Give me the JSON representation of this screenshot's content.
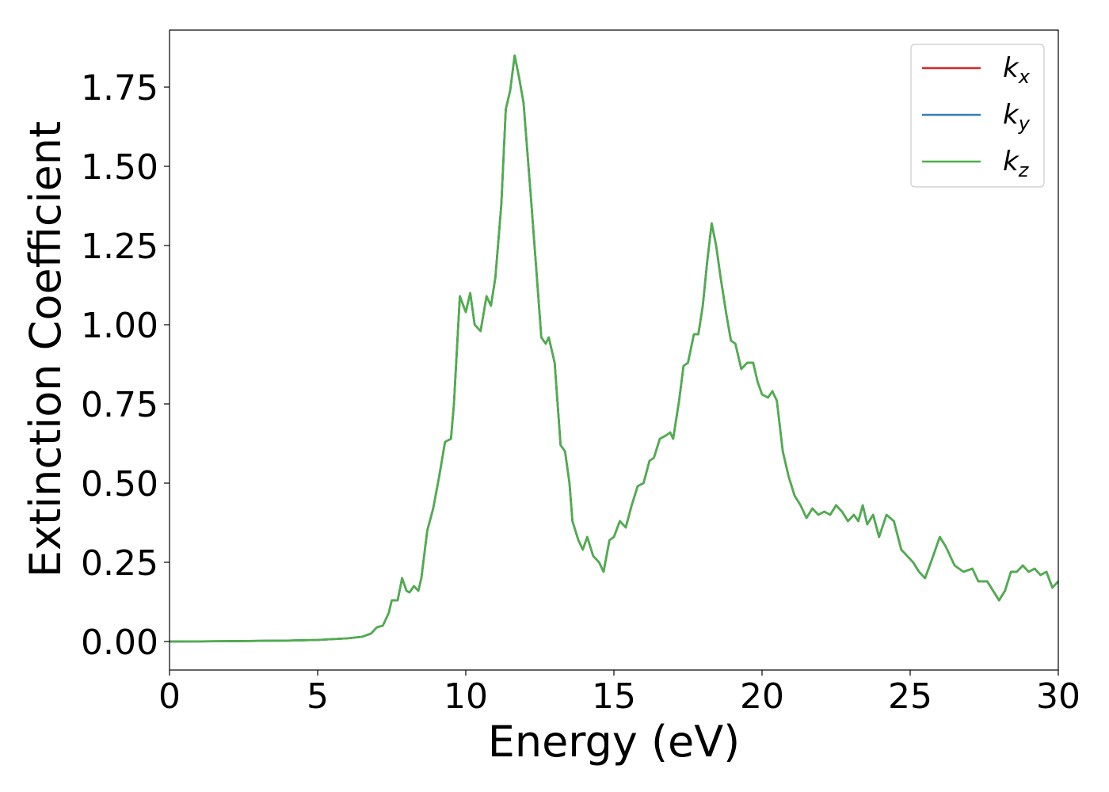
{
  "chart_data": {
    "type": "line",
    "xlabel": "Energy (eV)",
    "ylabel": "Extinction Coefficient",
    "x": [
      0,
      2,
      4,
      5,
      6,
      6.5,
      6.8,
      7.0,
      7.2,
      7.4,
      7.5,
      7.7,
      7.85,
      8.0,
      8.1,
      8.25,
      8.4,
      8.5,
      8.7,
      8.9,
      9.1,
      9.3,
      9.5,
      9.6,
      9.8,
      10.0,
      10.15,
      10.3,
      10.5,
      10.7,
      10.85,
      11.0,
      11.2,
      11.35,
      11.5,
      11.65,
      11.8,
      11.95,
      12.2,
      12.4,
      12.55,
      12.7,
      12.8,
      13.0,
      13.2,
      13.35,
      13.5,
      13.6,
      13.8,
      13.95,
      14.1,
      14.3,
      14.5,
      14.65,
      14.85,
      15.0,
      15.2,
      15.4,
      15.6,
      15.8,
      16.0,
      16.2,
      16.35,
      16.55,
      16.75,
      16.9,
      17.0,
      17.2,
      17.35,
      17.5,
      17.7,
      17.85,
      18.0,
      18.15,
      18.3,
      18.45,
      18.6,
      18.8,
      18.95,
      19.1,
      19.3,
      19.5,
      19.7,
      19.85,
      20.0,
      20.2,
      20.35,
      20.5,
      20.7,
      20.9,
      21.1,
      21.3,
      21.5,
      21.7,
      21.9,
      22.1,
      22.3,
      22.5,
      22.7,
      22.9,
      23.1,
      23.25,
      23.4,
      23.55,
      23.75,
      23.95,
      24.2,
      24.45,
      24.7,
      24.9,
      25.1,
      25.3,
      25.5,
      25.7,
      26.0,
      26.2,
      26.5,
      26.8,
      27.1,
      27.3,
      27.6,
      27.8,
      28.0,
      28.2,
      28.4,
      28.6,
      28.8,
      29.0,
      29.2,
      29.4,
      29.6,
      29.8,
      30
    ],
    "series": [
      {
        "name": "kx",
        "color": "#d62728",
        "values": [
          0,
          0.001,
          0.003,
          0.005,
          0.01,
          0.015,
          0.025,
          0.045,
          0.05,
          0.09,
          0.13,
          0.13,
          0.2,
          0.16,
          0.155,
          0.175,
          0.16,
          0.2,
          0.35,
          0.42,
          0.52,
          0.63,
          0.64,
          0.75,
          1.09,
          1.04,
          1.1,
          1.0,
          0.98,
          1.09,
          1.06,
          1.15,
          1.38,
          1.68,
          1.74,
          1.85,
          1.78,
          1.7,
          1.4,
          1.15,
          0.96,
          0.94,
          0.96,
          0.88,
          0.62,
          0.6,
          0.5,
          0.38,
          0.32,
          0.29,
          0.33,
          0.27,
          0.25,
          0.22,
          0.32,
          0.33,
          0.38,
          0.36,
          0.43,
          0.49,
          0.5,
          0.57,
          0.58,
          0.64,
          0.65,
          0.66,
          0.64,
          0.76,
          0.87,
          0.88,
          0.97,
          0.97,
          1.06,
          1.2,
          1.32,
          1.25,
          1.15,
          1.03,
          0.95,
          0.94,
          0.86,
          0.88,
          0.88,
          0.82,
          0.78,
          0.77,
          0.79,
          0.76,
          0.6,
          0.52,
          0.46,
          0.43,
          0.39,
          0.42,
          0.4,
          0.41,
          0.4,
          0.43,
          0.41,
          0.38,
          0.4,
          0.38,
          0.43,
          0.37,
          0.4,
          0.33,
          0.4,
          0.38,
          0.29,
          0.27,
          0.25,
          0.22,
          0.2,
          0.25,
          0.33,
          0.3,
          0.24,
          0.22,
          0.23,
          0.19,
          0.19,
          0.16,
          0.13,
          0.16,
          0.22,
          0.22,
          0.24,
          0.22,
          0.23,
          0.21,
          0.22,
          0.17,
          0.19
        ]
      },
      {
        "name": "ky",
        "color": "#377eb8",
        "values": [
          0,
          0.001,
          0.003,
          0.005,
          0.01,
          0.015,
          0.025,
          0.045,
          0.05,
          0.09,
          0.13,
          0.13,
          0.2,
          0.16,
          0.155,
          0.175,
          0.16,
          0.2,
          0.35,
          0.42,
          0.52,
          0.63,
          0.64,
          0.75,
          1.09,
          1.04,
          1.1,
          1.0,
          0.98,
          1.09,
          1.06,
          1.15,
          1.38,
          1.68,
          1.74,
          1.85,
          1.78,
          1.7,
          1.4,
          1.15,
          0.96,
          0.94,
          0.96,
          0.88,
          0.62,
          0.6,
          0.5,
          0.38,
          0.32,
          0.29,
          0.33,
          0.27,
          0.25,
          0.22,
          0.32,
          0.33,
          0.38,
          0.36,
          0.43,
          0.49,
          0.5,
          0.57,
          0.58,
          0.64,
          0.65,
          0.66,
          0.64,
          0.76,
          0.87,
          0.88,
          0.97,
          0.97,
          1.06,
          1.2,
          1.32,
          1.25,
          1.15,
          1.03,
          0.95,
          0.94,
          0.86,
          0.88,
          0.88,
          0.82,
          0.78,
          0.77,
          0.79,
          0.76,
          0.6,
          0.52,
          0.46,
          0.43,
          0.39,
          0.42,
          0.4,
          0.41,
          0.4,
          0.43,
          0.41,
          0.38,
          0.4,
          0.38,
          0.43,
          0.37,
          0.4,
          0.33,
          0.4,
          0.38,
          0.29,
          0.27,
          0.25,
          0.22,
          0.2,
          0.25,
          0.33,
          0.3,
          0.24,
          0.22,
          0.23,
          0.19,
          0.19,
          0.16,
          0.13,
          0.16,
          0.22,
          0.22,
          0.24,
          0.22,
          0.23,
          0.21,
          0.22,
          0.17,
          0.19
        ]
      },
      {
        "name": "kz",
        "color": "#4daf4a",
        "values": [
          0,
          0.001,
          0.003,
          0.005,
          0.01,
          0.015,
          0.025,
          0.045,
          0.05,
          0.09,
          0.13,
          0.13,
          0.2,
          0.16,
          0.155,
          0.175,
          0.16,
          0.2,
          0.35,
          0.42,
          0.52,
          0.63,
          0.64,
          0.75,
          1.09,
          1.04,
          1.1,
          1.0,
          0.98,
          1.09,
          1.06,
          1.15,
          1.38,
          1.68,
          1.74,
          1.85,
          1.78,
          1.7,
          1.4,
          1.15,
          0.96,
          0.94,
          0.96,
          0.88,
          0.62,
          0.6,
          0.5,
          0.38,
          0.32,
          0.29,
          0.33,
          0.27,
          0.25,
          0.22,
          0.32,
          0.33,
          0.38,
          0.36,
          0.43,
          0.49,
          0.5,
          0.57,
          0.58,
          0.64,
          0.65,
          0.66,
          0.64,
          0.76,
          0.87,
          0.88,
          0.97,
          0.97,
          1.06,
          1.2,
          1.32,
          1.25,
          1.15,
          1.03,
          0.95,
          0.94,
          0.86,
          0.88,
          0.88,
          0.82,
          0.78,
          0.77,
          0.79,
          0.76,
          0.6,
          0.52,
          0.46,
          0.43,
          0.39,
          0.42,
          0.4,
          0.41,
          0.4,
          0.43,
          0.41,
          0.38,
          0.4,
          0.38,
          0.43,
          0.37,
          0.4,
          0.33,
          0.4,
          0.38,
          0.29,
          0.27,
          0.25,
          0.22,
          0.2,
          0.25,
          0.33,
          0.3,
          0.24,
          0.22,
          0.23,
          0.19,
          0.19,
          0.16,
          0.13,
          0.16,
          0.22,
          0.22,
          0.24,
          0.22,
          0.23,
          0.21,
          0.22,
          0.17,
          0.19
        ]
      }
    ],
    "xlim": [
      0,
      30
    ],
    "xticks": [
      0,
      5,
      10,
      15,
      20,
      25,
      30
    ],
    "ylim": [
      -0.09,
      1.93
    ],
    "yticks": [
      {
        "value": 0,
        "label": "0.00"
      },
      {
        "value": 0.25,
        "label": "0.25"
      },
      {
        "value": 0.5,
        "label": "0.50"
      },
      {
        "value": 0.75,
        "label": "0.75"
      },
      {
        "value": 1,
        "label": "1.00"
      },
      {
        "value": 1.25,
        "label": "1.25"
      },
      {
        "value": 1.5,
        "label": "1.50"
      },
      {
        "value": 1.75,
        "label": "1.75"
      }
    ],
    "legend": "upper right"
  }
}
